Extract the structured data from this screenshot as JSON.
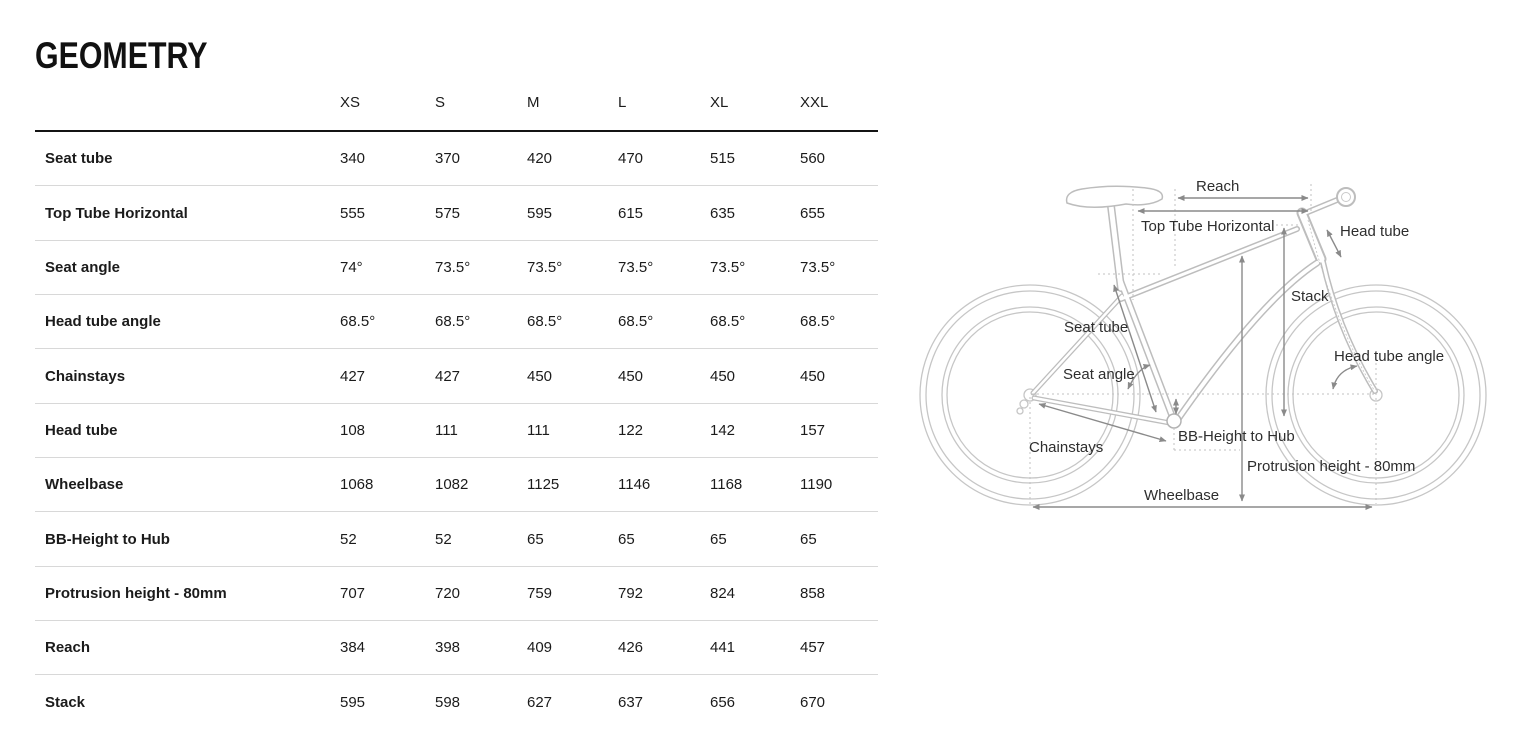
{
  "page": {
    "title": "GEOMETRY"
  },
  "table": {
    "columns": [
      "XS",
      "S",
      "M",
      "L",
      "XL",
      "XXL"
    ],
    "rows": [
      {
        "label": "Seat tube",
        "values": [
          "340",
          "370",
          "420",
          "470",
          "515",
          "560"
        ]
      },
      {
        "label": "Top Tube Horizontal",
        "values": [
          "555",
          "575",
          "595",
          "615",
          "635",
          "655"
        ]
      },
      {
        "label": "Seat angle",
        "values": [
          "74°",
          "73.5°",
          "73.5°",
          "73.5°",
          "73.5°",
          "73.5°"
        ]
      },
      {
        "label": "Head tube angle",
        "values": [
          "68.5°",
          "68.5°",
          "68.5°",
          "68.5°",
          "68.5°",
          "68.5°"
        ]
      },
      {
        "label": "Chainstays",
        "values": [
          "427",
          "427",
          "450",
          "450",
          "450",
          "450"
        ]
      },
      {
        "label": "Head tube",
        "values": [
          "108",
          "111",
          "111",
          "122",
          "142",
          "157"
        ]
      },
      {
        "label": "Wheelbase",
        "values": [
          "1068",
          "1082",
          "1125",
          "1146",
          "1168",
          "1190"
        ]
      },
      {
        "label": "BB-Height to Hub",
        "values": [
          "52",
          "52",
          "65",
          "65",
          "65",
          "65"
        ]
      },
      {
        "label": "Protrusion height - 80mm",
        "values": [
          "707",
          "720",
          "759",
          "792",
          "824",
          "858"
        ]
      },
      {
        "label": "Reach",
        "values": [
          "384",
          "398",
          "409",
          "426",
          "441",
          "457"
        ]
      },
      {
        "label": "Stack",
        "values": [
          "595",
          "598",
          "627",
          "637",
          "656",
          "670"
        ]
      }
    ]
  },
  "diagram": {
    "labels": {
      "reach": "Reach",
      "top_tube_horizontal": "Top Tube Horizontal",
      "head_tube": "Head tube",
      "stack": "Stack",
      "seat_tube": "Seat tube",
      "seat_angle": "Seat angle",
      "head_tube_angle": "Head tube angle",
      "chainstays": "Chainstays",
      "bb_height_to_hub": "BB-Height to Hub",
      "protrusion_height": "Protrusion height - 80mm",
      "wheelbase": "Wheelbase"
    },
    "colors": {
      "bike_outline": "#bdbdbd",
      "annotation_arrow": "#8a8a8a",
      "label_text": "#2e2e2e",
      "table_divider": "#d8d8d8",
      "header_rule": "#141414"
    }
  }
}
